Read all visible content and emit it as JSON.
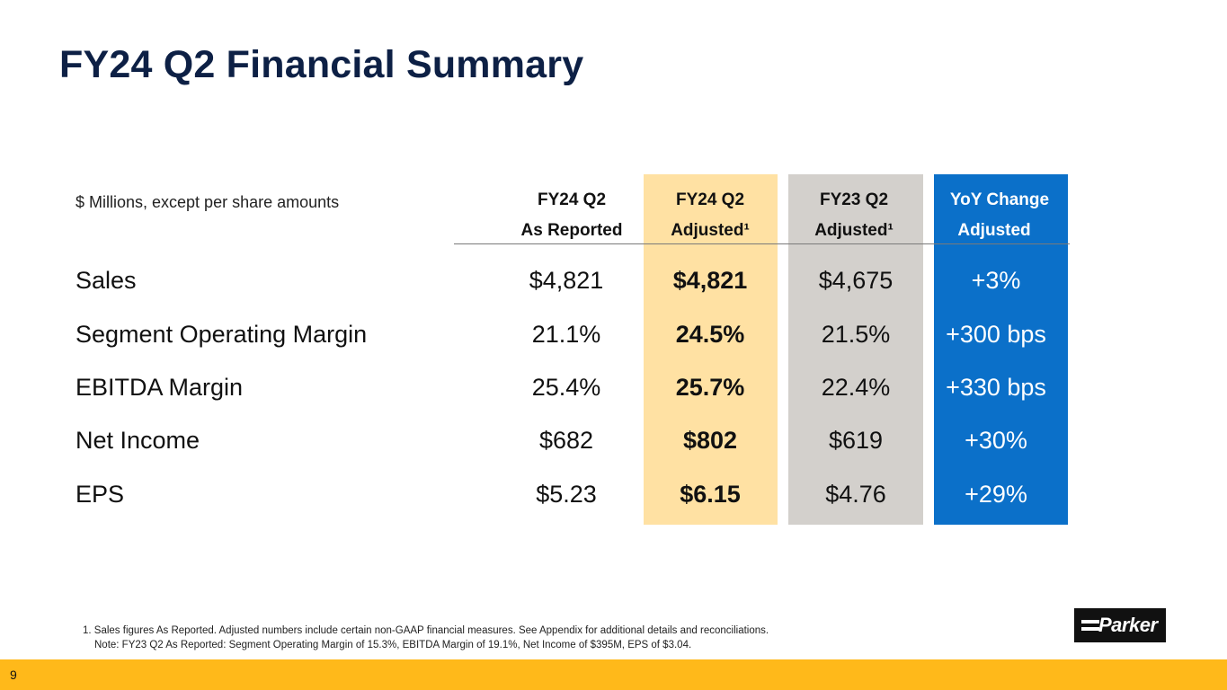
{
  "title": "FY24 Q2 Financial Summary",
  "units_note": "$ Millions, except per share amounts",
  "columns": [
    {
      "line1": "FY24 Q2",
      "line2": "As Reported"
    },
    {
      "line1": "FY24 Q2",
      "line2": "Adjusted¹"
    },
    {
      "line1": "FY23 Q2",
      "line2": "Adjusted¹"
    },
    {
      "line1": "YoY Change",
      "line2": "Adjusted"
    }
  ],
  "rows": [
    {
      "label": "Sales",
      "reported": "$4,821",
      "adjusted": "$4,821",
      "prior": "$4,675",
      "yoy": "+3%"
    },
    {
      "label": "Segment Operating Margin",
      "reported": "21.1%",
      "adjusted": "24.5%",
      "prior": "21.5%",
      "yoy": "+300 bps"
    },
    {
      "label": "EBITDA Margin",
      "reported": "25.4%",
      "adjusted": "25.7%",
      "prior": "22.4%",
      "yoy": "+330 bps"
    },
    {
      "label": "Net Income",
      "reported": "$682",
      "adjusted": "$802",
      "prior": "$619",
      "yoy": "+30%"
    },
    {
      "label": "EPS",
      "reported": "$5.23",
      "adjusted": "$6.15",
      "prior": "$4.76",
      "yoy": "+29%"
    }
  ],
  "footnotes": {
    "note1": "1. Sales figures As Reported. Adjusted numbers include certain non-GAAP financial measures. See Appendix for additional details and reconciliations.",
    "note2": "Note: FY23 Q2 As Reported: Segment Operating Margin of 15.3%, EBITDA Margin of 19.1%, Net Income of $395M, EPS of $3.04."
  },
  "logo": {
    "text": "Parker",
    "icon": "parker-logo-icon"
  },
  "page_number": "9",
  "colors": {
    "title": "#0d2045",
    "adjusted_column": "#ffe1a3",
    "prior_column": "#d3d0cc",
    "yoy_column": "#0b70c9",
    "bottom_bar": "#ffb91a"
  }
}
